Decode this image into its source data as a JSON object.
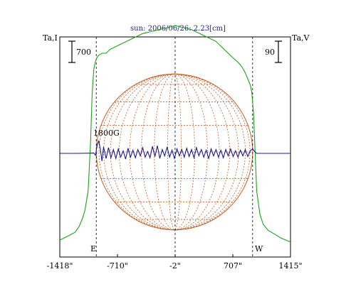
{
  "chart_data": {
    "type": "line",
    "title": "sun: 2006/06/26: 2.23[cm]",
    "left_axis_label": "Ta,I",
    "right_axis_label": "Ta,V",
    "left_scale_bar": "700",
    "right_scale_bar": "90",
    "annotation": "1800G",
    "east_label": "E",
    "west_label": "W",
    "x_ticks": [
      {
        "value": -1418,
        "label": "-1418\""
      },
      {
        "value": -710,
        "label": "-710\""
      },
      {
        "value": -2,
        "label": "-2\""
      },
      {
        "value": 707,
        "label": "707\""
      },
      {
        "value": 1415,
        "label": "1415\""
      }
    ],
    "xlim": [
      -1418,
      1415
    ],
    "limb_markers": [
      -970,
      950
    ],
    "grid": false,
    "colors": {
      "intensity": "#1fa01f",
      "polarization": "#1b1b8c",
      "sphere": "#c0602a",
      "axes": "#000000",
      "title": "#1a1a80"
    },
    "series": [
      {
        "x": [
          -1418,
          -1320,
          -1230,
          -1180,
          -1140,
          -1110,
          -1070,
          -1040,
          -1020,
          -1000,
          -980,
          -960,
          -940,
          -900,
          -850,
          -800,
          -750,
          -700,
          -600,
          -500,
          -400,
          -300,
          -200,
          -100,
          0,
          100,
          200,
          300,
          400,
          500,
          600,
          700,
          780,
          820,
          860,
          880,
          900,
          920,
          940,
          960,
          980,
          1000,
          1040,
          1080,
          1140,
          1220,
          1300,
          1415
        ],
        "y": [
          0.05,
          0.07,
          0.09,
          0.12,
          0.16,
          0.2,
          0.3,
          0.55,
          0.8,
          0.92,
          0.96,
          0.98,
          0.99,
          1.0,
          1.0,
          1.02,
          1.03,
          1.04,
          1.06,
          1.08,
          1.1,
          1.11,
          1.12,
          1.13,
          1.14,
          1.13,
          1.12,
          1.1,
          1.08,
          1.06,
          1.02,
          0.98,
          0.95,
          0.93,
          0.9,
          0.88,
          0.86,
          0.84,
          0.8,
          0.7,
          0.5,
          0.3,
          0.18,
          0.13,
          0.1,
          0.08,
          0.06,
          0.04
        ]
      },
      {
        "x": [
          -1418,
          -1200,
          -1000,
          -980,
          -960,
          -940,
          -920,
          -900,
          -880,
          -850,
          -820,
          -790,
          -760,
          -730,
          -700,
          -670,
          -640,
          -610,
          -580,
          -550,
          -520,
          -490,
          -460,
          -430,
          -400,
          -370,
          -340,
          -310,
          -280,
          -250,
          -220,
          -190,
          -160,
          -130,
          -100,
          -70,
          -40,
          -10,
          20,
          50,
          80,
          110,
          140,
          170,
          200,
          230,
          260,
          290,
          320,
          350,
          380,
          410,
          440,
          470,
          500,
          530,
          560,
          590,
          620,
          650,
          680,
          710,
          740,
          770,
          800,
          830,
          860,
          890,
          920,
          950,
          980,
          1000,
          1200,
          1415
        ],
        "y": [
          0.0,
          0.0,
          0.02,
          -0.15,
          0.6,
          1.0,
          0.3,
          -0.6,
          0.5,
          -0.4,
          0.45,
          -0.35,
          0.3,
          -0.4,
          0.35,
          -0.3,
          0.2,
          -0.45,
          0.4,
          -0.3,
          0.25,
          -0.35,
          0.3,
          -0.2,
          0.45,
          -0.3,
          0.15,
          -0.35,
          0.55,
          -0.25,
          0.6,
          -0.4,
          0.3,
          -0.2,
          0.5,
          -0.3,
          0.25,
          -0.4,
          0.35,
          -0.2,
          0.3,
          -0.3,
          0.4,
          -0.25,
          0.3,
          -0.35,
          0.45,
          -0.2,
          0.3,
          -0.3,
          0.25,
          -0.4,
          0.35,
          -0.2,
          0.3,
          -0.3,
          0.25,
          -0.35,
          0.3,
          -0.2,
          0.35,
          -0.25,
          0.2,
          -0.3,
          0.25,
          -0.2,
          0.3,
          -0.25,
          0.2,
          0.35,
          0.1,
          0.0,
          0.0,
          0.0
        ]
      }
    ]
  }
}
